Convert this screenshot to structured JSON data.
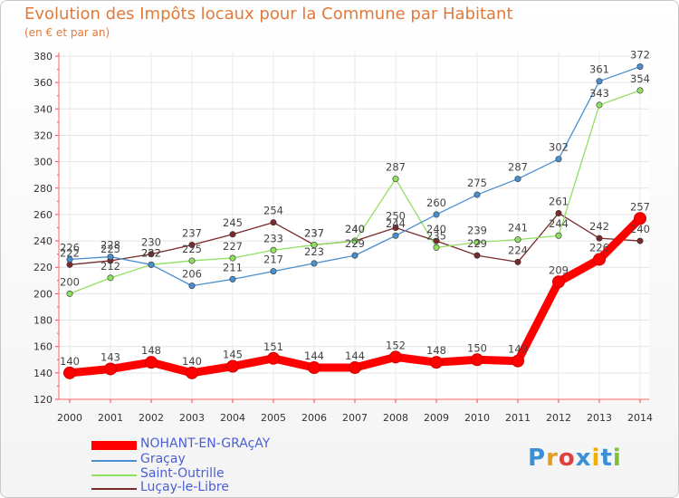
{
  "title": "Evolution des Impôts locaux pour la Commune par Habitant",
  "subtitle": "(en € et par an)",
  "logo": {
    "p": "P",
    "r": "r",
    "o": "o",
    "x": "x",
    "i1": "i",
    "t": "t",
    "i2": "i"
  },
  "colors": {
    "title": "#e07a3a",
    "main": "#ff0000",
    "gracay": "#4a8fd0",
    "saint_outrille": "#8fe060",
    "lucay": "#7a2a2a"
  },
  "chart_data": {
    "type": "line",
    "title": "Evolution des Impôts locaux pour la Commune par Habitant",
    "subtitle": "(en € et par an)",
    "xlabel": "",
    "ylabel": "",
    "ylim": [
      120,
      380
    ],
    "yticks": [
      120,
      140,
      160,
      180,
      200,
      220,
      240,
      260,
      280,
      300,
      320,
      340,
      360,
      380
    ],
    "x": [
      "2000",
      "2001",
      "2002",
      "2003",
      "2004",
      "2005",
      "2006",
      "2007",
      "2008",
      "2009",
      "2010",
      "2011",
      "2012",
      "2013",
      "2014"
    ],
    "series": [
      {
        "name": "Luçay-le-Libre",
        "key": "lucay",
        "color": "#7a2a2a",
        "values": [
          222,
          225,
          230,
          237,
          245,
          254,
          237,
          240,
          250,
          240,
          229,
          224,
          261,
          242,
          240
        ],
        "labels": [
          "222",
          "225",
          "230",
          "237",
          "245",
          "254",
          "237",
          "240",
          "250",
          "240",
          "229",
          "224",
          "261",
          "242",
          "240"
        ]
      },
      {
        "name": "Saint-Outrille",
        "key": "saint_outrille",
        "color": "#8fe060",
        "values": [
          200,
          212,
          222,
          225,
          227,
          233,
          237,
          240,
          287,
          235,
          239,
          241,
          244,
          343,
          354
        ],
        "labels": [
          "200",
          "212",
          "222",
          "225",
          "227",
          "233",
          "237",
          "240",
          "287",
          "235",
          "239",
          "241",
          "244",
          "343",
          "354"
        ]
      },
      {
        "name": "Graçay",
        "key": "gracay",
        "color": "#4a8fd0",
        "values": [
          226,
          228,
          222,
          206,
          211,
          217,
          223,
          229,
          244,
          260,
          275,
          287,
          302,
          361,
          372
        ],
        "labels": [
          "226",
          "228",
          "222",
          "206",
          "211",
          "217",
          "223",
          "229",
          "244",
          "260",
          "275",
          "287",
          "302",
          "361",
          "372"
        ]
      },
      {
        "name": "NOHANT-EN-GRAçAY",
        "key": "main",
        "color": "#ff0000",
        "values": [
          140,
          143,
          148,
          140,
          145,
          151,
          144,
          144,
          152,
          148,
          150,
          149,
          209,
          226,
          257
        ],
        "labels": [
          "140",
          "143",
          "148",
          "140",
          "145",
          "151",
          "144",
          "144",
          "152",
          "148",
          "150",
          "149",
          "209",
          "226",
          "257"
        ]
      }
    ],
    "legend": [
      {
        "name": "NOHANT-EN-GRAçAY",
        "key": "main"
      },
      {
        "name": "Graçay",
        "key": "gracay"
      },
      {
        "name": "Saint-Outrille",
        "key": "saint_outrille"
      },
      {
        "name": "Luçay-le-Libre",
        "key": "lucay"
      }
    ]
  }
}
